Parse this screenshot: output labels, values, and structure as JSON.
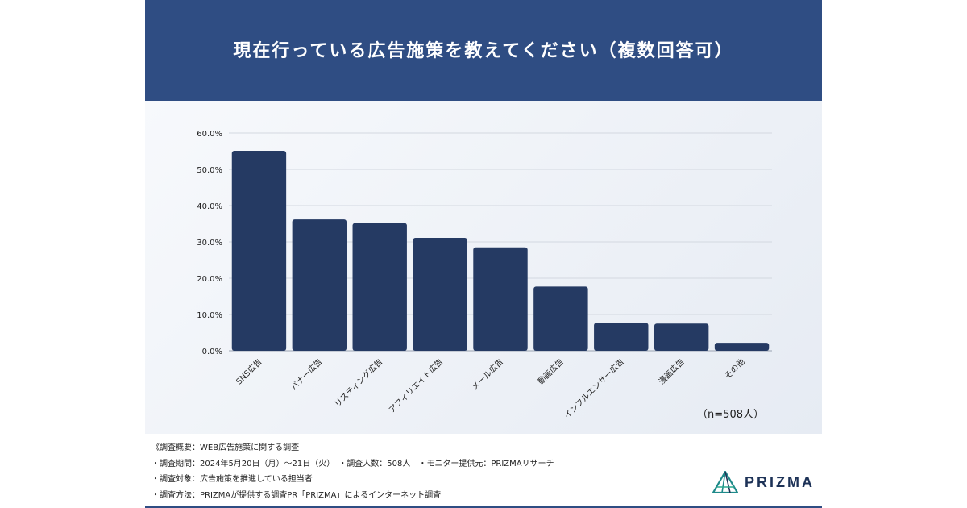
{
  "title": "現在行っている広告施策を教えてください（複数回答可）",
  "sample_note": "（n=508人）",
  "footer": {
    "lines": [
      "《調査概要：WEB広告施策に関する調査",
      "・調査期間：2024年5月20日（月）～21日（火）　・調査人数：508人　・モニター提供元：PRIZMAリサーチ",
      "・調査対象：広告施策を推進している担当者",
      "・調査方法：PRIZMAが提供する調査PR「PRIZMA」によるインターネット調査"
    ]
  },
  "logo": {
    "text": "PRIZMA",
    "icon": "prizma-triangle-icon"
  },
  "colors": {
    "header_bg": "#2f4d83",
    "bar": "#253a63",
    "logo_teal": "#1f8a8a"
  },
  "chart_data": {
    "type": "bar",
    "title": "現在行っている広告施策を教えてください（複数回答可）",
    "categories": [
      "SNS広告",
      "バナー広告",
      "リスティング広告",
      "アフィリエイト広告",
      "メール広告",
      "動画広告",
      "インフルエンサー広告",
      "漫画広告",
      "その他"
    ],
    "values": [
      55.1,
      36.2,
      35.2,
      31.1,
      28.5,
      17.7,
      7.7,
      7.5,
      2.2
    ],
    "ylim": [
      0,
      60
    ],
    "yticks": [
      0,
      10,
      20,
      30,
      40,
      50,
      60
    ],
    "ytick_labels": [
      "0.0%",
      "10.0%",
      "20.0%",
      "30.0%",
      "40.0%",
      "50.0%",
      "60.0%"
    ],
    "grid": true,
    "xlabel": "",
    "ylabel": ""
  }
}
